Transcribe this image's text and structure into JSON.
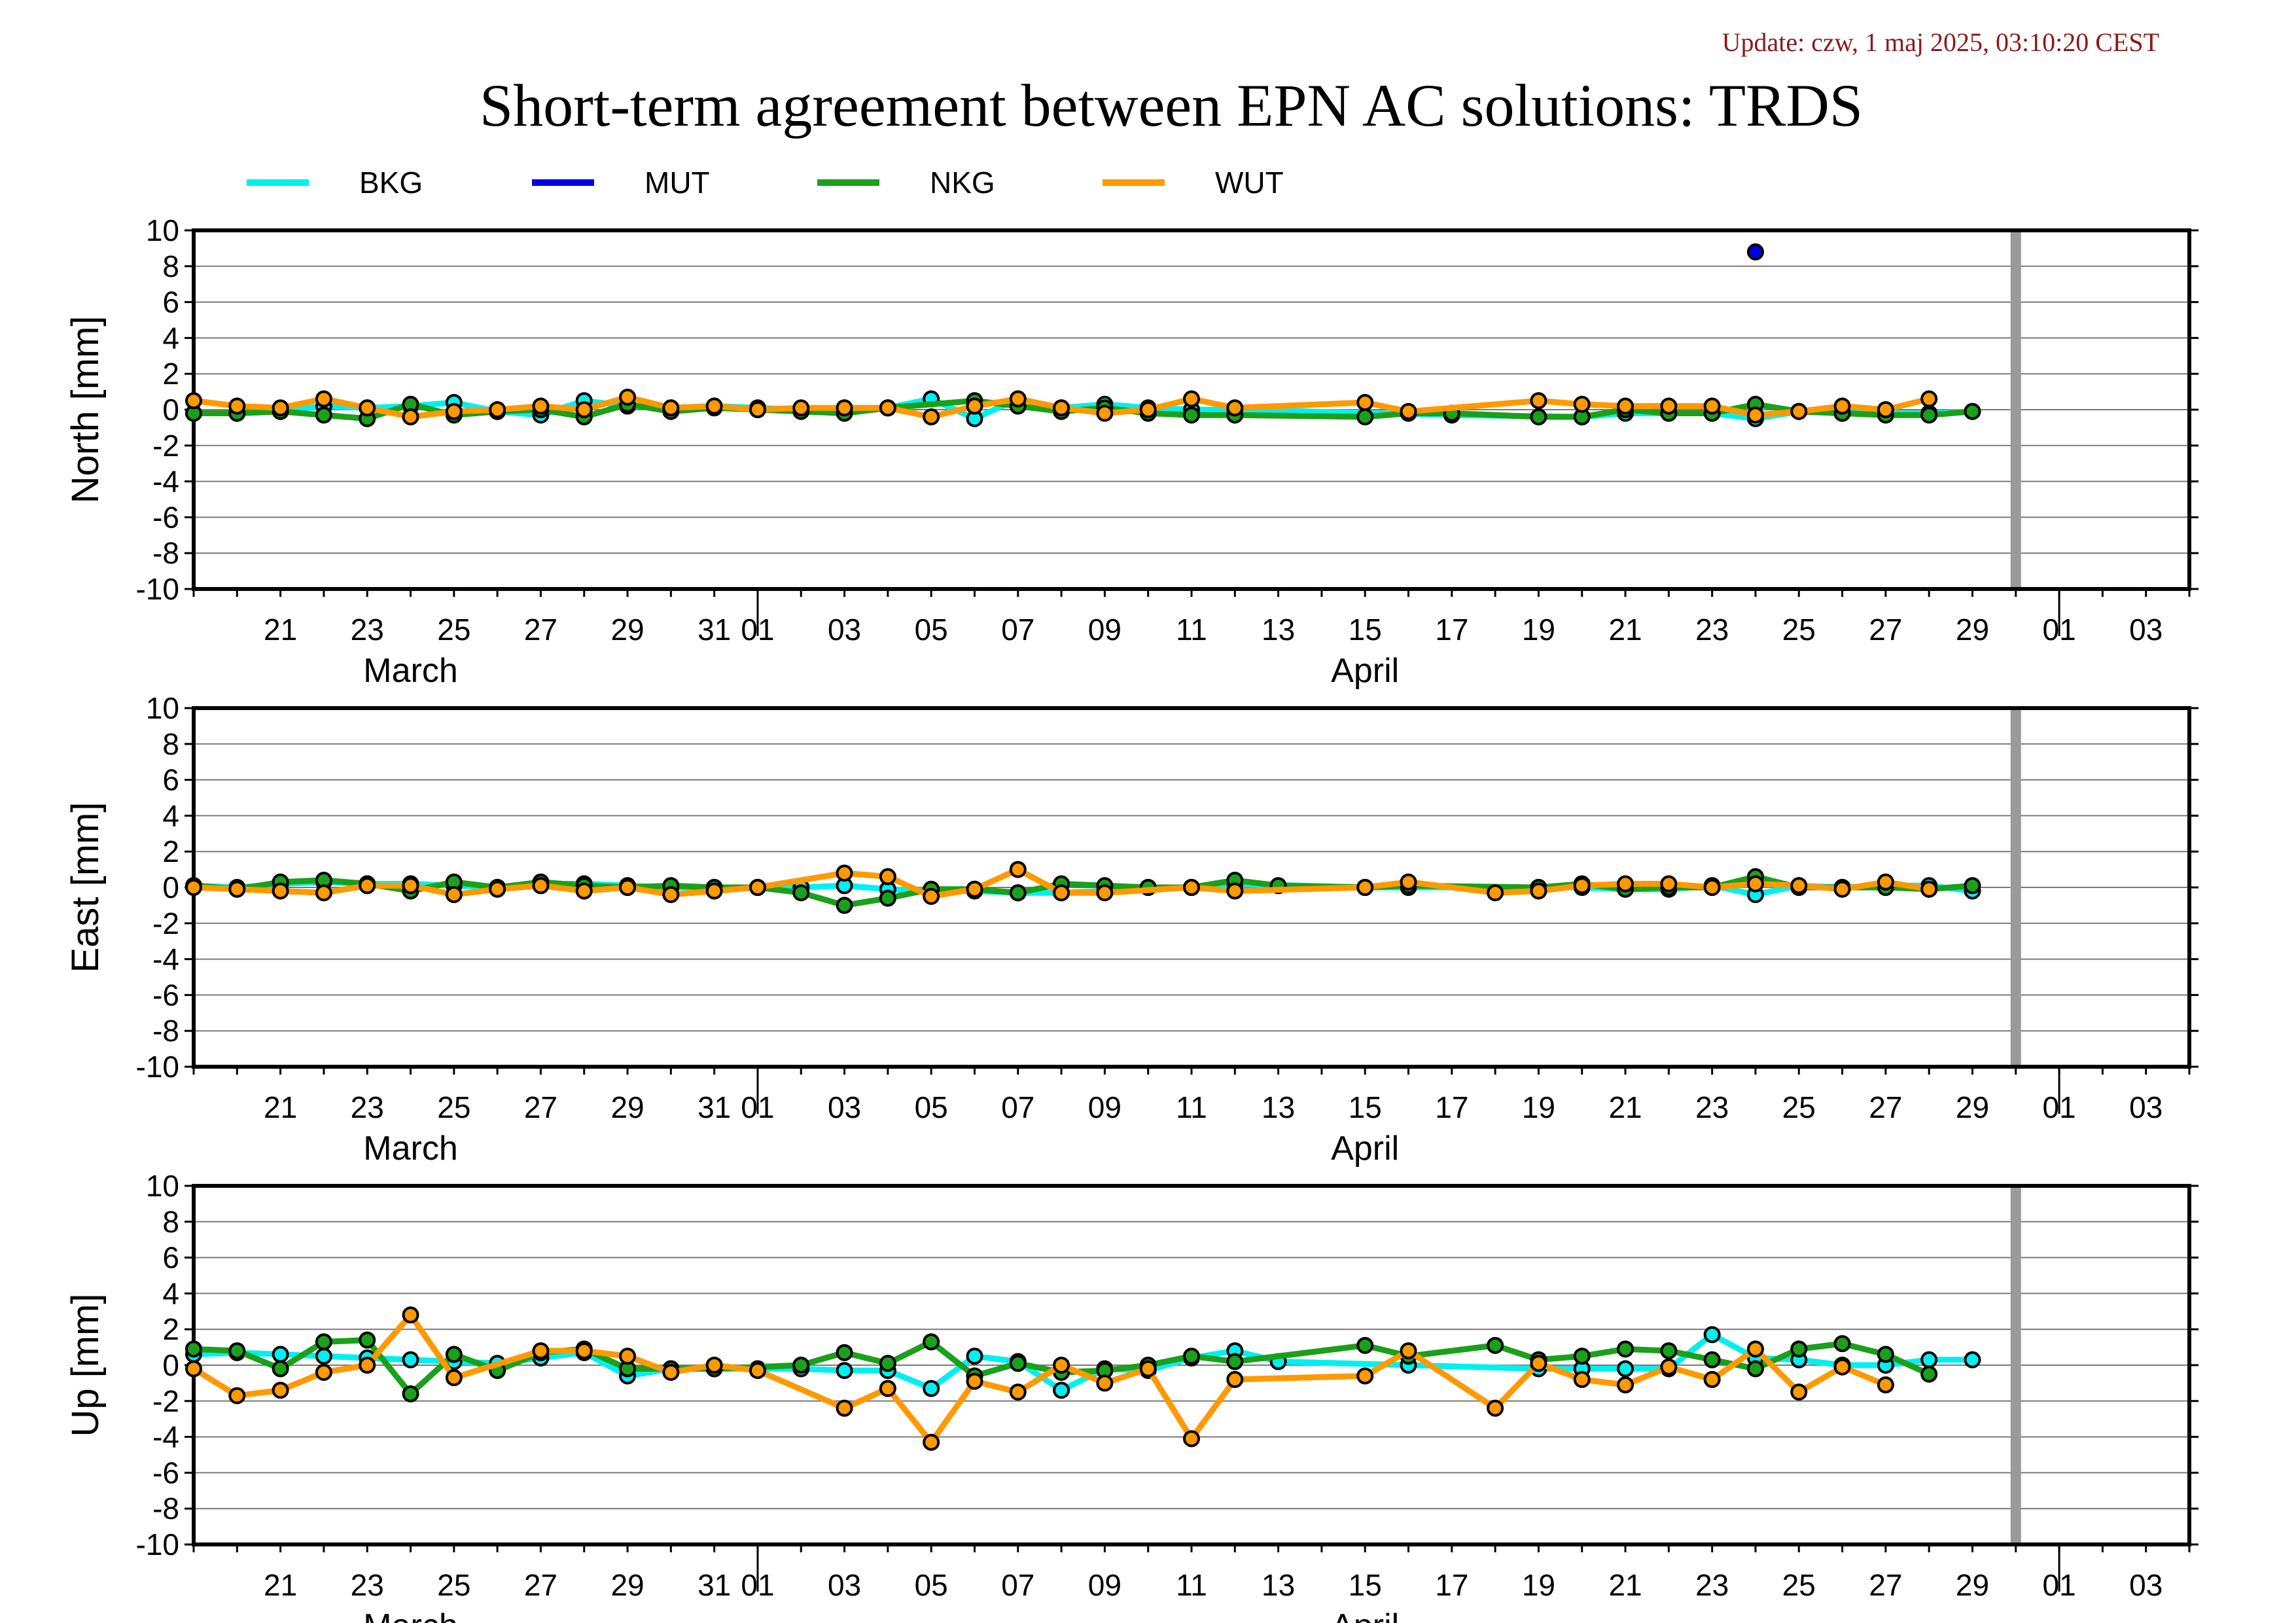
{
  "update_text": "Update: czw, 1 maj 2025, 03:10:20 CEST",
  "chart_data": {
    "type": "line",
    "title": "Short-term agreement between EPN AC solutions: TRDS",
    "legend_placement": "top",
    "grid": true,
    "ylim": [
      -10,
      10
    ],
    "y_ticks": [
      10,
      8,
      6,
      4,
      2,
      0,
      -2,
      -4,
      -6,
      -8,
      -10
    ],
    "x_range": [
      "2025-03-19",
      "2025-05-04"
    ],
    "x_tick_labels": [
      {
        "date": "2025-03-21",
        "label": "21"
      },
      {
        "date": "2025-03-23",
        "label": "23"
      },
      {
        "date": "2025-03-25",
        "label": "25"
      },
      {
        "date": "2025-03-27",
        "label": "27"
      },
      {
        "date": "2025-03-29",
        "label": "29"
      },
      {
        "date": "2025-03-31",
        "label": "31"
      },
      {
        "date": "2025-04-01",
        "label": "01"
      },
      {
        "date": "2025-04-03",
        "label": "03"
      },
      {
        "date": "2025-04-05",
        "label": "05"
      },
      {
        "date": "2025-04-07",
        "label": "07"
      },
      {
        "date": "2025-04-09",
        "label": "09"
      },
      {
        "date": "2025-04-11",
        "label": "11"
      },
      {
        "date": "2025-04-13",
        "label": "13"
      },
      {
        "date": "2025-04-15",
        "label": "15"
      },
      {
        "date": "2025-04-17",
        "label": "17"
      },
      {
        "date": "2025-04-19",
        "label": "19"
      },
      {
        "date": "2025-04-21",
        "label": "21"
      },
      {
        "date": "2025-04-23",
        "label": "23"
      },
      {
        "date": "2025-04-25",
        "label": "25"
      },
      {
        "date": "2025-04-27",
        "label": "27"
      },
      {
        "date": "2025-04-29",
        "label": "29"
      },
      {
        "date": "2025-05-01",
        "label": "01"
      },
      {
        "date": "2025-05-03",
        "label": "03"
      }
    ],
    "month_boundaries": [
      "2025-04-01",
      "2025-05-01"
    ],
    "month_labels": [
      {
        "date": "2025-03-24",
        "label": "March"
      },
      {
        "date": "2025-04-15",
        "label": "April"
      }
    ],
    "marker_date": "2025-04-30",
    "series_colors": {
      "BKG": "#00f0f0",
      "MUT": "#0000e0",
      "NKG": "#1aa01a",
      "WUT": "#ff9900"
    },
    "legend": [
      {
        "name": "BKG",
        "color": "#00f0f0"
      },
      {
        "name": "MUT",
        "color": "#0000e0"
      },
      {
        "name": "NKG",
        "color": "#1aa01a"
      },
      {
        "name": "WUT",
        "color": "#ff9900"
      }
    ],
    "dates": [
      "2025-03-19",
      "2025-03-20",
      "2025-03-21",
      "2025-03-22",
      "2025-03-23",
      "2025-03-24",
      "2025-03-25",
      "2025-03-26",
      "2025-03-27",
      "2025-03-28",
      "2025-03-29",
      "2025-03-30",
      "2025-03-31",
      "2025-04-01",
      "2025-04-02",
      "2025-04-03",
      "2025-04-04",
      "2025-04-05",
      "2025-04-06",
      "2025-04-07",
      "2025-04-08",
      "2025-04-09",
      "2025-04-10",
      "2025-04-11",
      "2025-04-12",
      "2025-04-13",
      "2025-04-14",
      "2025-04-15",
      "2025-04-16",
      "2025-04-17",
      "2025-04-18",
      "2025-04-19",
      "2025-04-20",
      "2025-04-21",
      "2025-04-22",
      "2025-04-23",
      "2025-04-24",
      "2025-04-25",
      "2025-04-26",
      "2025-04-27",
      "2025-04-28",
      "2025-04-29"
    ],
    "panels": [
      {
        "ylabel": "North [mm]",
        "series": [
          {
            "name": "BKG",
            "values": [
              -0.2,
              -0.2,
              -0.1,
              0.2,
              0.1,
              0.2,
              0.4,
              -0.1,
              -0.3,
              0.5,
              0.2,
              0.1,
              0.2,
              0.1,
              0.0,
              0.1,
              0.1,
              0.6,
              -0.5,
              0.6,
              0.1,
              0.3,
              0.1,
              0.0,
              0.0,
              null,
              null,
              null,
              null,
              -0.3,
              null,
              null,
              -0.4,
              -0.2,
              -0.2,
              -0.2,
              -0.5,
              -0.1,
              -0.2,
              -0.2,
              -0.2,
              -0.1
            ]
          },
          {
            "name": "MUT",
            "values": [
              null,
              null,
              null,
              null,
              null,
              null,
              null,
              null,
              null,
              null,
              null,
              null,
              null,
              null,
              null,
              null,
              null,
              null,
              null,
              null,
              null,
              null,
              null,
              null,
              null,
              null,
              null,
              null,
              null,
              null,
              null,
              null,
              null,
              null,
              null,
              null,
              8.8,
              null,
              null,
              null,
              null,
              null
            ]
          },
          {
            "name": "NKG",
            "values": [
              -0.2,
              -0.2,
              -0.1,
              -0.3,
              -0.5,
              0.3,
              -0.3,
              -0.1,
              0.0,
              -0.4,
              0.3,
              -0.1,
              0.1,
              0.0,
              -0.1,
              -0.2,
              0.1,
              null,
              0.5,
              0.2,
              -0.1,
              0.1,
              -0.2,
              -0.3,
              -0.3,
              null,
              null,
              -0.4,
              -0.2,
              -0.2,
              null,
              -0.4,
              -0.4,
              0.0,
              -0.2,
              -0.2,
              0.3,
              -0.1,
              -0.2,
              -0.3,
              -0.3,
              -0.1
            ]
          },
          {
            "name": "WUT",
            "values": [
              0.5,
              0.2,
              0.1,
              0.6,
              0.1,
              -0.4,
              -0.1,
              0.0,
              0.2,
              0.0,
              0.7,
              0.1,
              0.2,
              0.0,
              0.1,
              0.1,
              0.1,
              -0.4,
              0.2,
              0.6,
              0.1,
              -0.2,
              0.0,
              0.6,
              0.1,
              null,
              null,
              0.4,
              -0.1,
              null,
              null,
              0.5,
              0.3,
              0.2,
              0.2,
              0.2,
              -0.3,
              -0.1,
              0.2,
              0.0,
              0.6,
              null
            ]
          }
        ]
      },
      {
        "ylabel": "East [mm]",
        "series": [
          {
            "name": "BKG",
            "values": [
              0.1,
              0.0,
              0.2,
              0.3,
              0.2,
              0.2,
              0.1,
              0.0,
              0.2,
              0.2,
              0.1,
              0.0,
              0.0,
              0.0,
              0.0,
              0.1,
              -0.1,
              -0.2,
              -0.2,
              -0.3,
              -0.3,
              -0.2,
              0.0,
              0.0,
              0.2,
              null,
              null,
              0.0,
              0.0,
              null,
              null,
              0.0,
              0.0,
              -0.1,
              -0.1,
              0.1,
              -0.4,
              0.1,
              0.0,
              0.1,
              0.1,
              -0.2
            ]
          },
          {
            "name": "MUT",
            "values": []
          },
          {
            "name": "NKG",
            "values": [
              0.1,
              -0.1,
              0.3,
              0.4,
              0.2,
              -0.2,
              0.3,
              0.0,
              0.3,
              0.1,
              0.0,
              0.1,
              0.0,
              0.0,
              -0.3,
              -1.0,
              -0.6,
              -0.1,
              -0.1,
              -0.3,
              0.2,
              0.1,
              0.0,
              0.0,
              0.4,
              0.1,
              null,
              0.0,
              0.1,
              null,
              null,
              0.0,
              0.2,
              -0.1,
              0.0,
              0.0,
              0.6,
              0.0,
              0.0,
              0.0,
              -0.1,
              0.1
            ]
          },
          {
            "name": "WUT",
            "values": [
              0.0,
              -0.1,
              -0.2,
              -0.3,
              0.1,
              0.1,
              -0.4,
              -0.1,
              0.1,
              -0.2,
              0.0,
              -0.4,
              -0.2,
              0.0,
              null,
              0.8,
              0.6,
              -0.5,
              -0.1,
              1.0,
              -0.3,
              -0.3,
              null,
              0.0,
              -0.2,
              null,
              null,
              0.0,
              0.3,
              null,
              -0.3,
              -0.2,
              0.1,
              0.2,
              0.2,
              0.0,
              0.2,
              0.1,
              -0.1,
              0.3,
              -0.1,
              null
            ]
          }
        ]
      },
      {
        "ylabel": "Up [mm]",
        "series": [
          {
            "name": "BKG",
            "values": [
              0.6,
              0.7,
              0.6,
              0.5,
              0.4,
              0.3,
              0.2,
              0.1,
              0.4,
              0.7,
              -0.6,
              -0.2,
              -0.2,
              -0.2,
              -0.2,
              -0.3,
              -0.3,
              -1.3,
              0.5,
              0.2,
              -1.4,
              -0.2,
              -0.3,
              0.4,
              0.8,
              0.2,
              null,
              null,
              0.0,
              null,
              null,
              -0.2,
              -0.2,
              -0.2,
              -0.2,
              1.7,
              0.4,
              0.3,
              0.0,
              0.0,
              0.3,
              0.3
            ]
          },
          {
            "name": "MUT",
            "values": []
          },
          {
            "name": "NKG",
            "values": [
              0.9,
              0.8,
              -0.2,
              1.3,
              1.4,
              -1.6,
              0.6,
              -0.3,
              0.7,
              0.9,
              -0.2,
              -0.2,
              -0.2,
              null,
              0.0,
              0.7,
              0.1,
              1.3,
              -0.6,
              0.1,
              -0.4,
              -0.3,
              0.0,
              0.5,
              0.2,
              null,
              null,
              1.1,
              0.5,
              null,
              1.1,
              0.3,
              0.5,
              0.9,
              0.8,
              0.3,
              -0.2,
              0.9,
              1.2,
              0.6,
              -0.5,
              null
            ]
          },
          {
            "name": "WUT",
            "values": [
              -0.2,
              -1.7,
              -1.4,
              -0.4,
              0.0,
              2.8,
              -0.7,
              null,
              0.8,
              0.8,
              0.5,
              -0.4,
              0.0,
              -0.3,
              null,
              -2.4,
              -1.3,
              -4.3,
              -0.9,
              -1.5,
              0.0,
              -1.0,
              -0.2,
              -4.1,
              -0.8,
              null,
              null,
              -0.6,
              0.8,
              null,
              -2.4,
              0.1,
              -0.8,
              -1.1,
              -0.1,
              -0.8,
              0.9,
              -1.5,
              -0.1,
              -1.1,
              null,
              null
            ]
          }
        ]
      }
    ]
  }
}
